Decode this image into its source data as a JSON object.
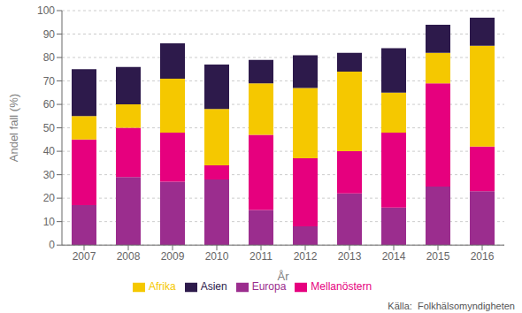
{
  "chart_data": {
    "type": "bar",
    "stacked": true,
    "categories": [
      "2007",
      "2008",
      "2009",
      "2010",
      "2011",
      "2012",
      "2013",
      "2014",
      "2015",
      "2016"
    ],
    "series": [
      {
        "name": "Europa",
        "color": "#9b2d8e",
        "values": [
          17,
          29,
          27,
          28,
          15,
          8,
          22,
          16,
          25,
          23
        ]
      },
      {
        "name": "Mellanöstern",
        "color": "#e6007e",
        "values": [
          28,
          21,
          21,
          6,
          32,
          29,
          18,
          32,
          44,
          19
        ]
      },
      {
        "name": "Afrika",
        "color": "#f5c800",
        "values": [
          10,
          10,
          23,
          24,
          22,
          30,
          34,
          17,
          13,
          43
        ]
      },
      {
        "name": "Asien",
        "color": "#2d1a4b",
        "values": [
          20,
          16,
          15,
          19,
          10,
          14,
          8,
          19,
          12,
          12
        ]
      }
    ],
    "xlabel": "År",
    "ylabel": "Andel fall (%)",
    "ylim": [
      0,
      100
    ],
    "yticks": [
      0,
      10,
      20,
      30,
      40,
      50,
      60,
      70,
      80,
      90,
      100
    ],
    "grid": true,
    "legend": "bottom",
    "annotations": [
      "Källa:  Folkhälsomyndigheten"
    ]
  }
}
